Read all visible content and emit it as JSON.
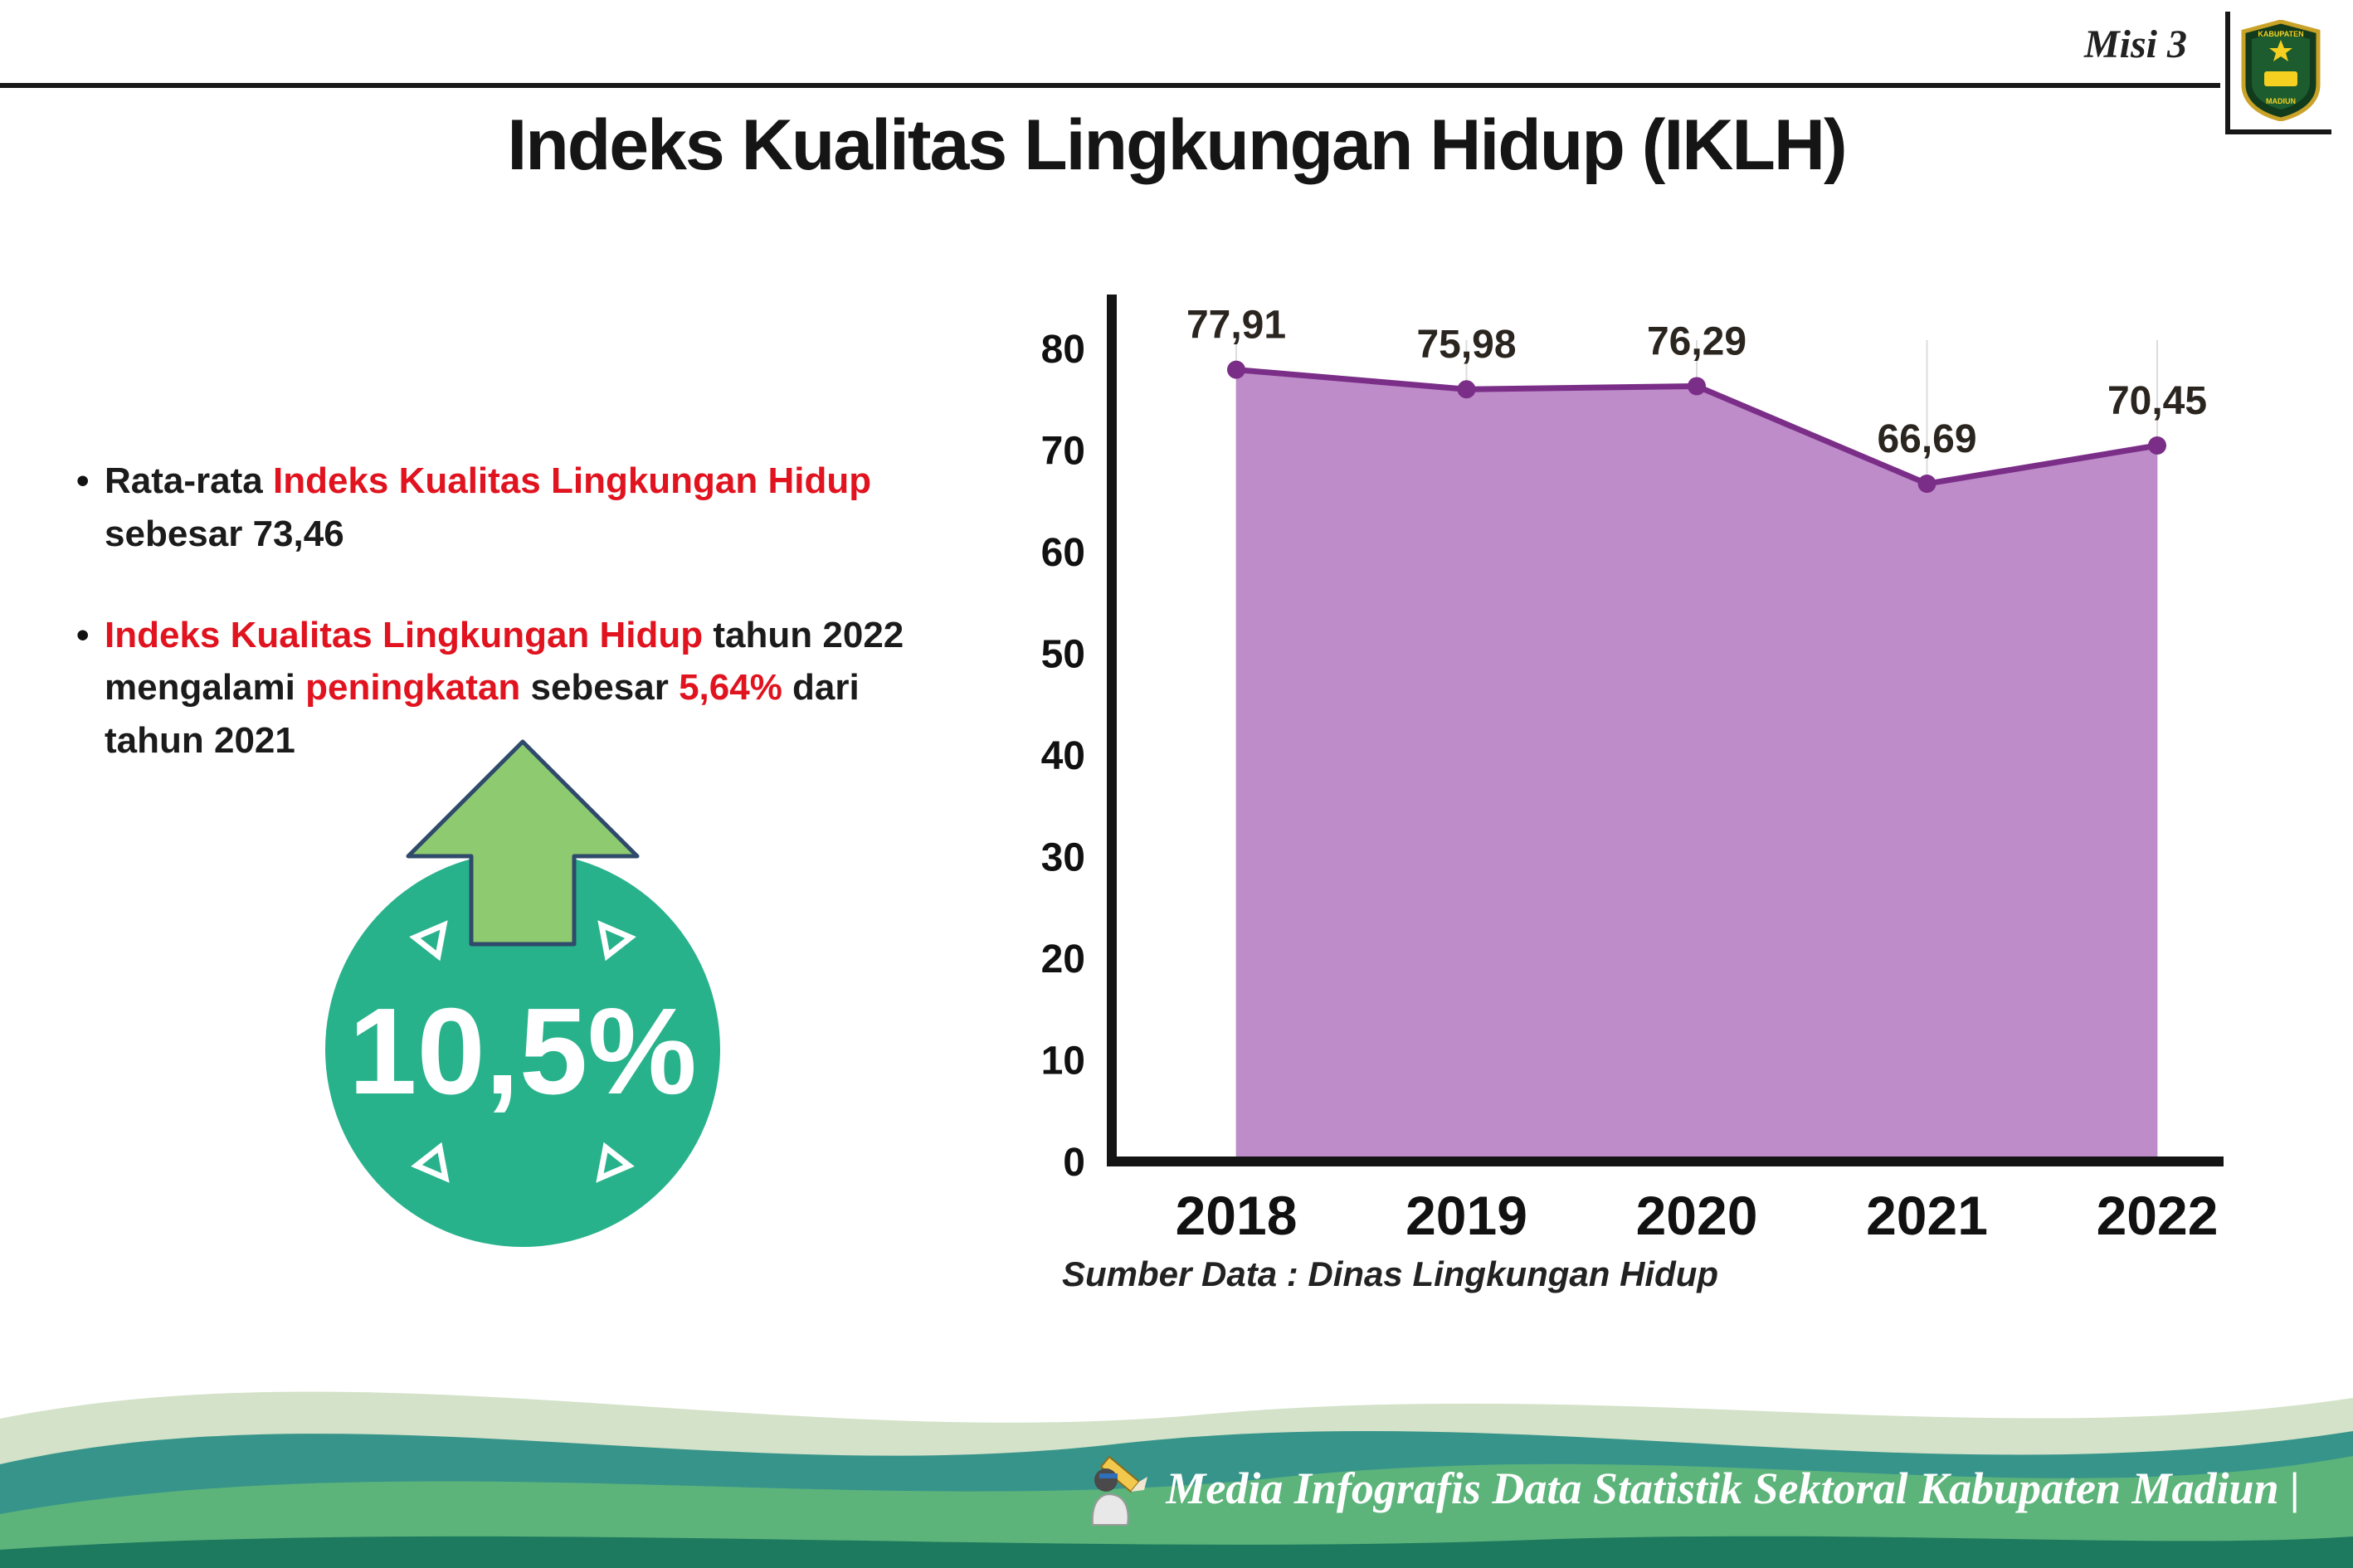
{
  "header": {
    "misi": "Misi 3",
    "title": "Indeks Kualitas Lingkungan Hidup (IKLH)",
    "logo_text_top": "KABUPATEN",
    "logo_text_bottom": "MADIUN"
  },
  "notes": {
    "bullet1": {
      "p1": "Rata-rata ",
      "p2": "Indeks Kualitas Lingkungan Hidup",
      "p3": " sebesar 73,46"
    },
    "bullet2": {
      "p1": "Indeks Kualitas Lingkungan Hidup",
      "p2": " tahun 2022 mengalami ",
      "p3": "peningkatan",
      "p4": " sebesar ",
      "p5": "5,64%",
      "p6": " dari tahun 2021"
    }
  },
  "badge": {
    "value": "10,5%",
    "direction": "up",
    "circle_color": "#28b28c",
    "arrow_color": "#8ecb70"
  },
  "chart_data": {
    "type": "area",
    "categories": [
      "2018",
      "2019",
      "2020",
      "2021",
      "2022"
    ],
    "values": [
      77.91,
      75.98,
      76.29,
      66.69,
      70.45
    ],
    "value_labels": [
      "77,91",
      "75,98",
      "76,29",
      "66,69",
      "70,45"
    ],
    "title": "",
    "xlabel": "",
    "ylabel": "",
    "ylim": [
      0,
      80
    ],
    "ytick_step": 10,
    "grid": "vertical-light",
    "legend": "none",
    "fill_color": "#bd8cc9",
    "line_color": "#7b2e88",
    "marker_color": "#7b2e88",
    "axis_color": "#141414",
    "label_color": "#2b2520",
    "source": "Sumber Data : Dinas Lingkungan Hidup"
  },
  "colors": {
    "accent_red": "#e0131f",
    "badge_teal": "#28b28c",
    "badge_arrow_green": "#8ecb70",
    "footer_green": "#5cb47a",
    "footer_teal": "#37948b",
    "footer_dark": "#1e7a5f"
  },
  "footer": {
    "caption": "Media Infografis Data Statistik Sektoral Kabupaten Madiun |"
  }
}
